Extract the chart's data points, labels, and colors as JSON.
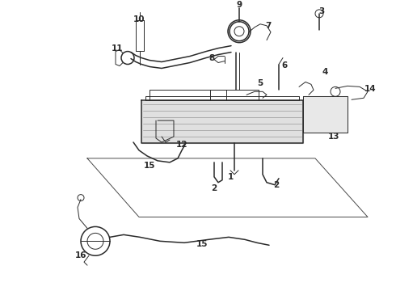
{
  "bg_color": "#ffffff",
  "line_color": "#2a2a2a",
  "figsize": [
    4.9,
    3.6
  ],
  "dpi": 100,
  "lw": 1.1,
  "lw_thin": 0.7,
  "fs": 7.5,
  "fw": "bold"
}
